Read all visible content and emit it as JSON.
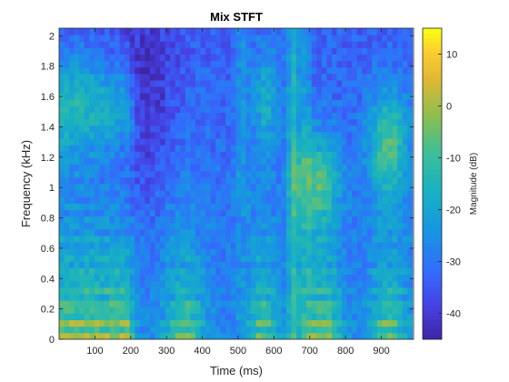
{
  "chart_data": {
    "type": "heatmap",
    "title": "Mix STFT",
    "xlabel": "Time (ms)",
    "ylabel": "Frequency (kHz)",
    "colorbar_label": "Magnitude (dB)",
    "xlim": [
      0,
      990
    ],
    "ylim": [
      0,
      2.05
    ],
    "clim": [
      -45,
      15
    ],
    "x_ticks": [
      100,
      200,
      300,
      400,
      500,
      600,
      700,
      800,
      900
    ],
    "y_ticks": [
      0,
      0.2,
      0.4,
      0.6,
      0.8,
      1,
      1.2,
      1.4,
      1.6,
      1.8,
      2
    ],
    "y_tick_labels": [
      "0",
      "0.2",
      "0.4",
      "0.6",
      "0.8",
      "1",
      "1.2",
      "1.4",
      "1.6",
      "1.8",
      "2"
    ],
    "colorbar_ticks": [
      -40,
      -30,
      -20,
      -10,
      0,
      10
    ],
    "colorbar_tick_labels": [
      "-40",
      "-30",
      "-20",
      "-10",
      "0",
      "10"
    ],
    "colormap": "parula",
    "grid": false,
    "time_bins": 70,
    "freq_bins": 48,
    "time_step_ms": 14.1,
    "freq_step_khz": 0.0427,
    "colors": {
      "axes": "#262626",
      "title": "#000000",
      "background": "#ffffff"
    }
  }
}
